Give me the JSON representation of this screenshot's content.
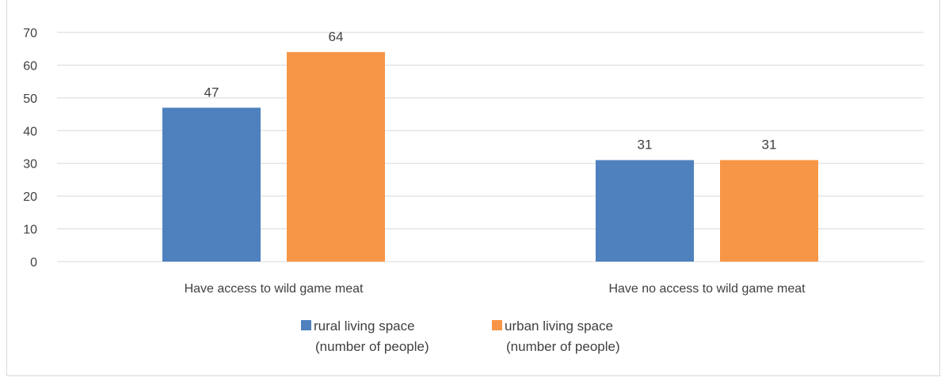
{
  "chart_data": {
    "type": "bar",
    "categories": [
      "Have access to wild game meat",
      "Have no access to wild game meat"
    ],
    "series": [
      {
        "name": "rural living space (number of people)",
        "legend_lines": [
          "rural living space",
          "(number of people)"
        ],
        "values": [
          47,
          31
        ],
        "color": "#4e81bd"
      },
      {
        "name": "urban living space (number of people)",
        "legend_lines": [
          "urban living space",
          "(number of people)"
        ],
        "values": [
          64,
          31
        ],
        "color": "#f79646"
      }
    ],
    "ylim": [
      0,
      70
    ],
    "yticks": [
      0,
      10,
      20,
      30,
      40,
      50,
      60,
      70
    ],
    "grid": true,
    "legend": "bottom",
    "data_labels": true,
    "gridline_color": "#d9d9d9",
    "text_color": "#404040"
  }
}
